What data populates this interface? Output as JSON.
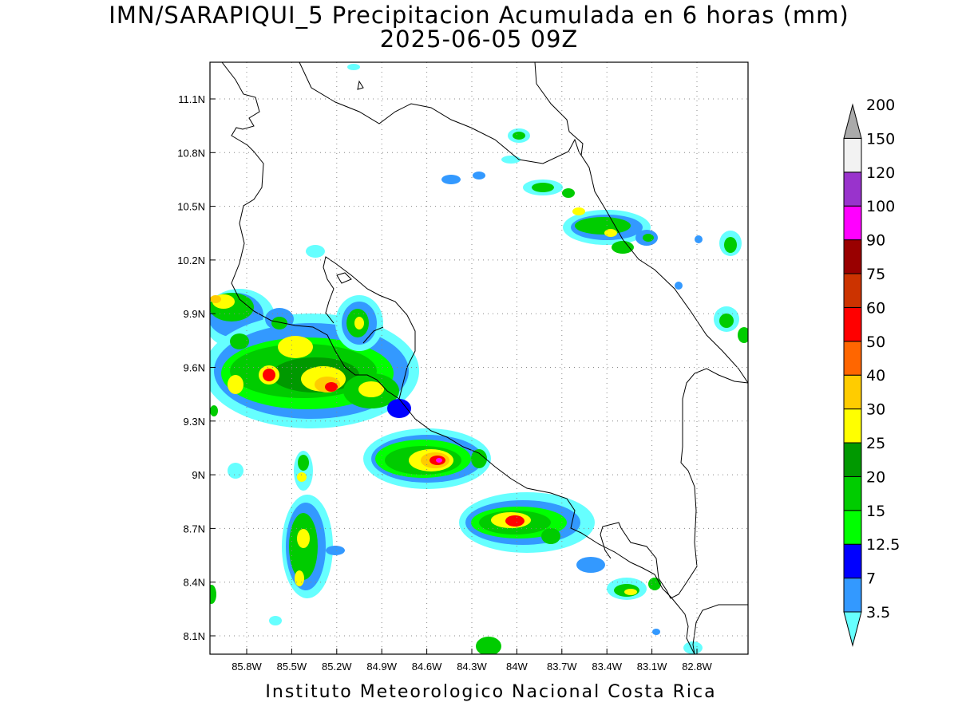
{
  "title": "IMN/SARAPIQUI_5 Precipitacion Acumulada en 6 horas (mm)",
  "subtitle": "2025-06-05 09Z",
  "footer": "Instituto Meteorologico Nacional Costa Rica",
  "map": {
    "lon_range": [
      -86.1,
      -83.1
    ],
    "lat_range": [
      8.0,
      11.3
    ],
    "lon_ticks": [
      "85.8W",
      "85.5W",
      "85.2W",
      "84.9W",
      "84.6W",
      "84.3W",
      "84W",
      "83.7W",
      "83.4W",
      "83.1W",
      "82.8W"
    ],
    "lat_ticks": [
      "11.1N",
      "10.8N",
      "10.5N",
      "10.2N",
      "9.9N",
      "9.6N",
      "9.3N",
      "9N",
      "8.7N",
      "8.4N",
      "8.1N"
    ],
    "grid": "dotted"
  },
  "colorbar": {
    "levels": [
      {
        "label": "3.5",
        "color": "#66ffff"
      },
      {
        "label": "7",
        "color": "#3399ff"
      },
      {
        "label": "12.5",
        "color": "#0000ff"
      },
      {
        "label": "15",
        "color": "#00ff00"
      },
      {
        "label": "20",
        "color": "#00cc00"
      },
      {
        "label": "25",
        "color": "#009900"
      },
      {
        "label": "30",
        "color": "#ffff00"
      },
      {
        "label": "40",
        "color": "#ffcc00"
      },
      {
        "label": "50",
        "color": "#ff6600"
      },
      {
        "label": "60",
        "color": "#ff0000"
      },
      {
        "label": "75",
        "color": "#cc3300"
      },
      {
        "label": "90",
        "color": "#990000"
      },
      {
        "label": "100",
        "color": "#ff00ff"
      },
      {
        "label": "120",
        "color": "#9933cc"
      },
      {
        "label": "150",
        "color": "#f2f2f2"
      },
      {
        "label": "200",
        "color": "#aaaaaa"
      }
    ]
  }
}
